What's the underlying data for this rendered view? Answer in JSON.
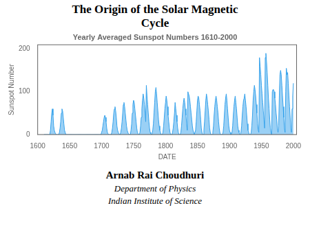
{
  "title": [
    "The Origin of the Solar Magnetic",
    "Cycle"
  ],
  "annotations": [
    "Arnab Rai Choudhuri",
    "Department of Physics",
    "Indian Institute of Science"
  ],
  "chart_data": {
    "type": "area",
    "title": "Yearly Averaged Sunspot Numbers 1610-2000",
    "x_label": "DATE",
    "y_label": "Sunspot Number",
    "xlim": [
      1600,
      2005
    ],
    "ylim": [
      0,
      210
    ],
    "xticks": [
      1600,
      1650,
      1700,
      1750,
      1800,
      1850,
      1900,
      1950,
      2000
    ],
    "yticks": [
      0,
      100,
      200
    ],
    "grid": false,
    "x": [
      1610,
      1611,
      1612,
      1613,
      1614,
      1615,
      1616,
      1617,
      1618,
      1619,
      1620,
      1621,
      1622,
      1623,
      1624,
      1625,
      1626,
      1627,
      1628,
      1629,
      1630,
      1631,
      1632,
      1633,
      1634,
      1635,
      1636,
      1637,
      1638,
      1639,
      1640,
      1641,
      1642,
      1643,
      1644,
      1645,
      1646,
      1647,
      1648,
      1649,
      1650,
      1651,
      1652,
      1653,
      1654,
      1655,
      1656,
      1657,
      1658,
      1659,
      1660,
      1661,
      1662,
      1663,
      1664,
      1665,
      1666,
      1667,
      1668,
      1669,
      1670,
      1671,
      1672,
      1673,
      1674,
      1675,
      1676,
      1677,
      1678,
      1679,
      1680,
      1681,
      1682,
      1683,
      1684,
      1685,
      1686,
      1687,
      1688,
      1689,
      1690,
      1691,
      1692,
      1693,
      1694,
      1695,
      1696,
      1697,
      1698,
      1699,
      1700,
      1701,
      1702,
      1703,
      1704,
      1705,
      1706,
      1707,
      1708,
      1709,
      1710,
      1711,
      1712,
      1713,
      1714,
      1715,
      1716,
      1717,
      1718,
      1719,
      1720,
      1721,
      1722,
      1723,
      1724,
      1725,
      1726,
      1727,
      1728,
      1729,
      1730,
      1731,
      1732,
      1733,
      1734,
      1735,
      1736,
      1737,
      1738,
      1739,
      1740,
      1741,
      1742,
      1743,
      1744,
      1745,
      1746,
      1747,
      1748,
      1749,
      1750,
      1751,
      1752,
      1753,
      1754,
      1755,
      1756,
      1757,
      1758,
      1759,
      1760,
      1761,
      1762,
      1763,
      1764,
      1765,
      1766,
      1767,
      1768,
      1769,
      1770,
      1771,
      1772,
      1773,
      1774,
      1775,
      1776,
      1777,
      1778,
      1779,
      1780,
      1781,
      1782,
      1783,
      1784,
      1785,
      1786,
      1787,
      1788,
      1789,
      1790,
      1791,
      1792,
      1793,
      1794,
      1795,
      1796,
      1797,
      1798,
      1799,
      1800,
      1801,
      1802,
      1803,
      1804,
      1805,
      1806,
      1807,
      1808,
      1809,
      1810,
      1811,
      1812,
      1813,
      1814,
      1815,
      1816,
      1817,
      1818,
      1819,
      1820,
      1821,
      1822,
      1823,
      1824,
      1825,
      1826,
      1827,
      1828,
      1829,
      1830,
      1831,
      1832,
      1833,
      1834,
      1835,
      1836,
      1837,
      1838,
      1839,
      1840,
      1841,
      1842,
      1843,
      1844,
      1845,
      1846,
      1847,
      1848,
      1849,
      1850,
      1851,
      1852,
      1853,
      1854,
      1855,
      1856,
      1857,
      1858,
      1859,
      1860,
      1861,
      1862,
      1863,
      1864,
      1865,
      1866,
      1867,
      1868,
      1869,
      1870,
      1871,
      1872,
      1873,
      1874,
      1875,
      1876,
      1877,
      1878,
      1879,
      1880,
      1881,
      1882,
      1883,
      1884,
      1885,
      1886,
      1887,
      1888,
      1889,
      1890,
      1891,
      1892,
      1893,
      1894,
      1895,
      1896,
      1897,
      1898,
      1899,
      1900,
      1901,
      1902,
      1903,
      1904,
      1905,
      1906,
      1907,
      1908,
      1909,
      1910,
      1911,
      1912,
      1913,
      1914,
      1915,
      1916,
      1917,
      1918,
      1919,
      1920,
      1921,
      1922,
      1923,
      1924,
      1925,
      1926,
      1927,
      1928,
      1929,
      1930,
      1931,
      1932,
      1933,
      1934,
      1935,
      1936,
      1937,
      1938,
      1939,
      1940,
      1941,
      1942,
      1943,
      1944,
      1945,
      1946,
      1947,
      1948,
      1949,
      1950,
      1951,
      1952,
      1953,
      1954,
      1955,
      1956,
      1957,
      1958,
      1959,
      1960,
      1961,
      1962,
      1963,
      1964,
      1965,
      1966,
      1967,
      1968,
      1969,
      1970,
      1971,
      1972,
      1973,
      1974,
      1975,
      1976,
      1977,
      1978,
      1979,
      1980,
      1981,
      1982,
      1983,
      1984,
      1985,
      1986,
      1987,
      1988,
      1989,
      1990,
      1991,
      1992,
      1993,
      1994,
      1995,
      1996,
      1997,
      1998,
      1999,
      2000
    ],
    "values": [
      0,
      0,
      0,
      0,
      0,
      0,
      0,
      0,
      0,
      0,
      10,
      30,
      50,
      60,
      45,
      20,
      10,
      5,
      2,
      0,
      0,
      0,
      0,
      0,
      5,
      15,
      30,
      50,
      60,
      55,
      40,
      25,
      10,
      5,
      0,
      0,
      0,
      0,
      0,
      0,
      0,
      0,
      0,
      0,
      0,
      0,
      0,
      0,
      0,
      0,
      0,
      0,
      0,
      0,
      0,
      0,
      0,
      0,
      0,
      0,
      0,
      0,
      0,
      0,
      0,
      0,
      0,
      0,
      0,
      0,
      0,
      0,
      0,
      0,
      0,
      0,
      0,
      0,
      0,
      0,
      0,
      0,
      0,
      0,
      0,
      0,
      0,
      0,
      0,
      0,
      5,
      10,
      20,
      30,
      40,
      45,
      40,
      30,
      15,
      5,
      2,
      0,
      0,
      0,
      0,
      0,
      5,
      15,
      30,
      50,
      60,
      65,
      55,
      40,
      20,
      10,
      5,
      2,
      0,
      0,
      5,
      15,
      30,
      50,
      70,
      75,
      65,
      50,
      35,
      20,
      10,
      5,
      2,
      0,
      0,
      0,
      10,
      25,
      50,
      70,
      80,
      75,
      60,
      45,
      30,
      15,
      5,
      2,
      0,
      0,
      5,
      20,
      40,
      60,
      80,
      95,
      85,
      70,
      50,
      30,
      115,
      90,
      70,
      50,
      30,
      15,
      5,
      2,
      0,
      0,
      10,
      25,
      50,
      75,
      100,
      110,
      95,
      75,
      55,
      35,
      20,
      10,
      5,
      0,
      0,
      0,
      5,
      20,
      40,
      60,
      75,
      90,
      80,
      65,
      45,
      30,
      15,
      5,
      0,
      0,
      0,
      5,
      15,
      30,
      50,
      75,
      60,
      45,
      30,
      15,
      5,
      0,
      0,
      0,
      5,
      20,
      40,
      60,
      75,
      85,
      75,
      60,
      45,
      25,
      10,
      100,
      95,
      90,
      80,
      65,
      50,
      35,
      20,
      10,
      5,
      0,
      0,
      10,
      30,
      55,
      80,
      90,
      85,
      70,
      55,
      35,
      15,
      5,
      0,
      0,
      10,
      30,
      55,
      80,
      95,
      85,
      70,
      55,
      35,
      15,
      5,
      0,
      0,
      0,
      5,
      20,
      45,
      65,
      80,
      90,
      80,
      65,
      50,
      30,
      15,
      5,
      0,
      0,
      0,
      0,
      5,
      20,
      45,
      70,
      85,
      95,
      80,
      60,
      40,
      20,
      10,
      5,
      0,
      0,
      5,
      20,
      45,
      65,
      80,
      90,
      75,
      60,
      40,
      20,
      10,
      5,
      0,
      0,
      5,
      20,
      45,
      65,
      80,
      85,
      95,
      80,
      65,
      45,
      25,
      10,
      5,
      0,
      0,
      0,
      5,
      20,
      45,
      80,
      100,
      115,
      105,
      90,
      70,
      50,
      25,
      10,
      5,
      180,
      160,
      140,
      115,
      95,
      75,
      55,
      35,
      15,
      180,
      190,
      170,
      145,
      115,
      85,
      60,
      35,
      15,
      5,
      0,
      100,
      105,
      105,
      100,
      85,
      70,
      50,
      35,
      15,
      5,
      20,
      90,
      140,
      150,
      140,
      115,
      90,
      65,
      40,
      15,
      5,
      100,
      155,
      140,
      145,
      120,
      90,
      65,
      40,
      15,
      5,
      60,
      90,
      120
    ]
  }
}
